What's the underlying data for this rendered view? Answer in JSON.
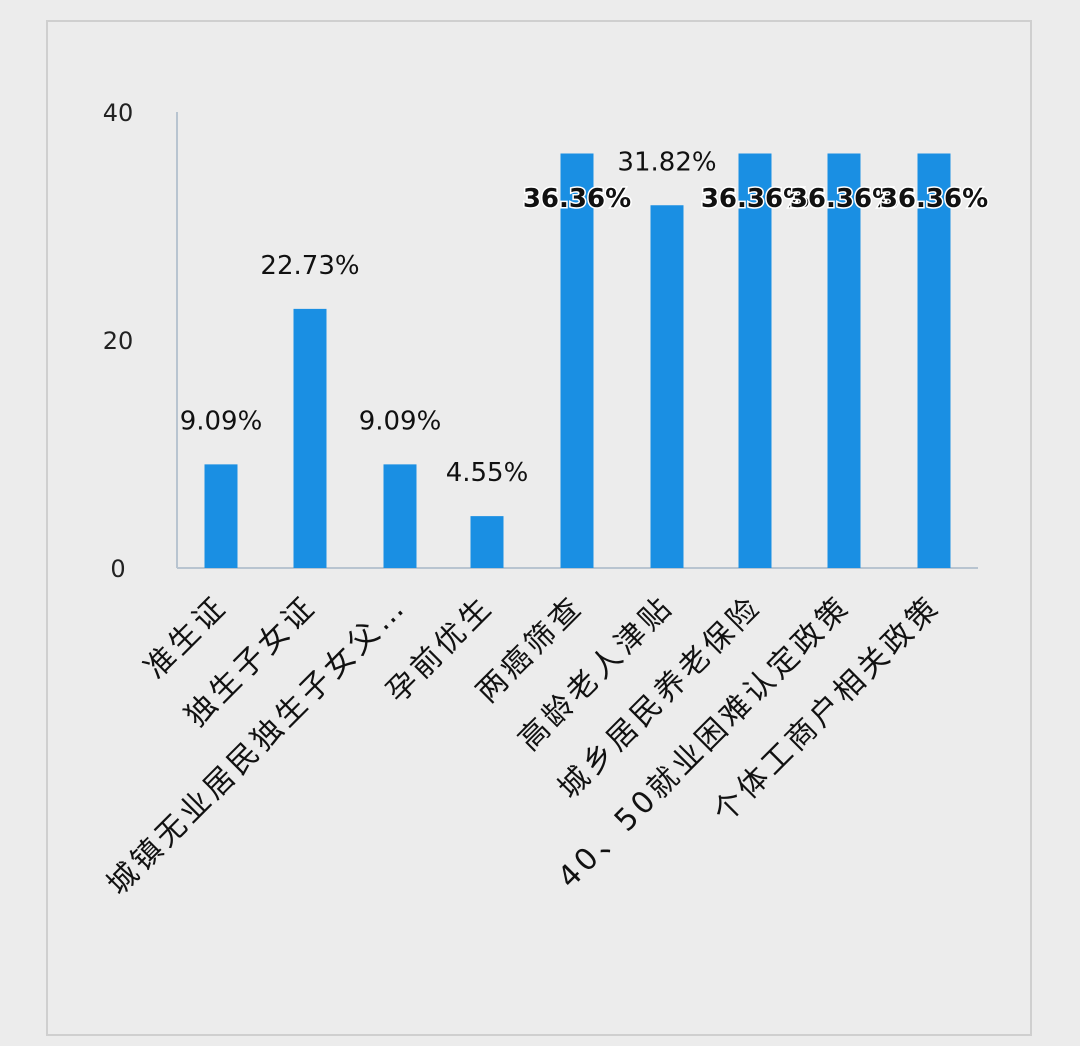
{
  "chart_data": {
    "type": "bar",
    "categories": [
      "准生证",
      "独生子女证",
      "城镇无业居民独生子女父…",
      "孕前优生",
      "两癌筛查",
      "高龄老人津贴",
      "城乡居民养老保险",
      "40、50就业困难认定政策",
      "个体工商户相关政策"
    ],
    "values": [
      9.09,
      22.73,
      9.09,
      4.55,
      36.36,
      31.82,
      36.36,
      36.36,
      36.36
    ],
    "data_labels": [
      "9.09%",
      "22.73%",
      "9.09%",
      "4.55%",
      "36.36%",
      "31.82%",
      "36.36%",
      "36.36%",
      "36.36%"
    ],
    "yticks": [
      "0",
      "20",
      "40"
    ],
    "ylim": [
      0,
      40
    ],
    "bar_color": "#1a8fe3",
    "axis_color": "#b8c4d0",
    "grid": false
  }
}
